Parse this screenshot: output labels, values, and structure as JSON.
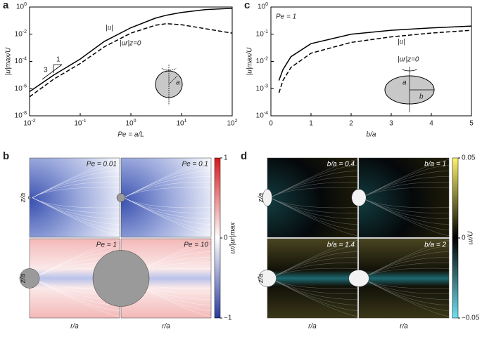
{
  "chart_data": [
    {
      "type": "line",
      "panel": "a",
      "xlabel": "Pe = a/L",
      "ylabel": "|u|max/U",
      "xlog": true,
      "ylog": true,
      "xlim": [
        0.01,
        100
      ],
      "ylim": [
        1e-08,
        1
      ],
      "xticks": [
        {
          "value": 0.01,
          "label": "10^-2"
        },
        {
          "value": 0.1,
          "label": "10^-1"
        },
        {
          "value": 1,
          "label": "10^0"
        },
        {
          "value": 10,
          "label": "10^1"
        },
        {
          "value": 100,
          "label": "10^2"
        }
      ],
      "yticks": [
        {
          "value": 1e-08,
          "label": "10^-8"
        },
        {
          "value": 1e-06,
          "label": "10^-6"
        },
        {
          "value": 0.0001,
          "label": "10^-4"
        },
        {
          "value": 0.01,
          "label": "10^-2"
        },
        {
          "value": 1,
          "label": "10^0"
        }
      ],
      "x": [
        0.01,
        0.03,
        0.1,
        0.3,
        1,
        3,
        5,
        10,
        30,
        100
      ],
      "series": [
        {
          "name": "|u|",
          "color": "#000000",
          "dash": false,
          "values": [
            6e-07,
            1e-05,
            0.00015,
            0.003,
            0.03,
            0.15,
            0.25,
            0.4,
            0.65,
            0.8
          ]
        },
        {
          "name": "|ur|z=0",
          "color": "#000000",
          "dash": true,
          "values": [
            2.5e-07,
            5e-06,
            7e-05,
            0.0012,
            0.012,
            0.045,
            0.06,
            0.05,
            0.025,
            0.012
          ]
        }
      ],
      "slope_labels": [
        "1",
        "3"
      ],
      "inset_label": "a"
    },
    {
      "type": "line",
      "panel": "c",
      "xlabel": "b/a",
      "ylabel": "|u|max/U",
      "xlog": false,
      "ylog": true,
      "annotation": "Pe = 1",
      "xlim": [
        0,
        5
      ],
      "ylim": [
        0.0001,
        1
      ],
      "xticks": [
        0,
        1,
        2,
        3,
        4,
        5
      ],
      "yticks": [
        {
          "value": 0.0001,
          "label": "10^-4"
        },
        {
          "value": 0.001,
          "label": "10^-3"
        },
        {
          "value": 0.01,
          "label": "10^-2"
        },
        {
          "value": 0.1,
          "label": "10^-1"
        },
        {
          "value": 1,
          "label": "10^0"
        }
      ],
      "x": [
        0.2,
        0.3,
        0.5,
        1,
        2,
        3,
        4,
        5
      ],
      "series": [
        {
          "name": "|u|",
          "color": "#000000",
          "dash": false,
          "values": [
            0.002,
            0.005,
            0.015,
            0.045,
            0.1,
            0.14,
            0.17,
            0.2
          ]
        },
        {
          "name": "|ur|z=0",
          "color": "#000000",
          "dash": true,
          "values": [
            0.0007,
            0.002,
            0.006,
            0.02,
            0.05,
            0.08,
            0.11,
            0.14
          ]
        }
      ],
      "inset_labels": [
        "a",
        "b"
      ]
    },
    {
      "type": "field",
      "panel": "b",
      "panels": [
        "Pe = 0.01",
        "Pe = 0.1",
        "Pe = 1",
        "Pe = 10"
      ],
      "xlabel": "r/a",
      "ylabel": "z/a",
      "colorbar_label": "ur/|ur|max",
      "clim": [
        -1,
        1
      ],
      "cticks": [
        {
          "value": 1,
          "label": "1"
        },
        {
          "value": 0,
          "label": "0"
        },
        {
          "value": -1,
          "label": "−1"
        }
      ]
    },
    {
      "type": "field",
      "panel": "d",
      "panels": [
        "b/a = 0.4",
        "b/a = 1",
        "b/a = 1.4",
        "b/a = 2"
      ],
      "xlabel": "r/a",
      "ylabel": "z/a",
      "colorbar_label": "ur/U",
      "clim": [
        -0.05,
        0.05
      ],
      "cticks": [
        {
          "value": 0.05,
          "label": "0.05"
        },
        {
          "value": 0,
          "label": "0"
        },
        {
          "value": -0.05,
          "label": "−0.05"
        }
      ]
    }
  ]
}
